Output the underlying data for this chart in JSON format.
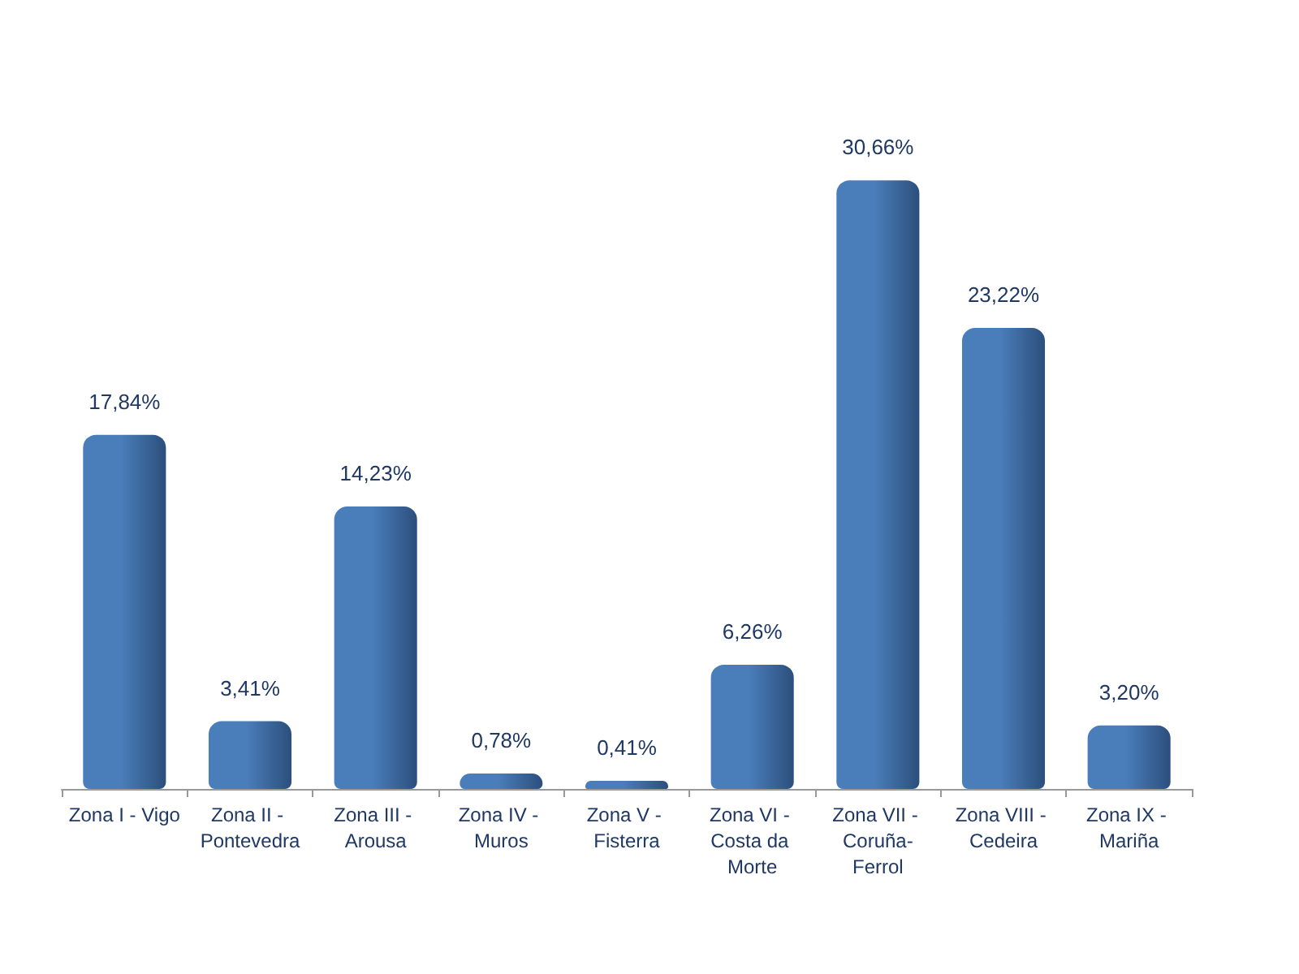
{
  "chart_data": {
    "type": "bar",
    "categories": [
      "Zona I - Vigo",
      "Zona II - Pontevedra",
      "Zona III - Arousa",
      "Zona IV - Muros",
      "Zona V - Fisterra",
      "Zona VI - Costa da Morte",
      "Zona VII - Coruña-Ferrol",
      "Zona VIII - Cedeira",
      "Zona IX - Mariña"
    ],
    "values": [
      17.84,
      3.41,
      14.23,
      0.78,
      0.41,
      6.26,
      30.66,
      23.22,
      3.2
    ],
    "value_labels": [
      "17,84%",
      "3,41%",
      "14,23%",
      "0,78%",
      "0,41%",
      "6,26%",
      "30,66%",
      "23,22%",
      "3,20%"
    ],
    "color": "#4a7ebb"
  }
}
